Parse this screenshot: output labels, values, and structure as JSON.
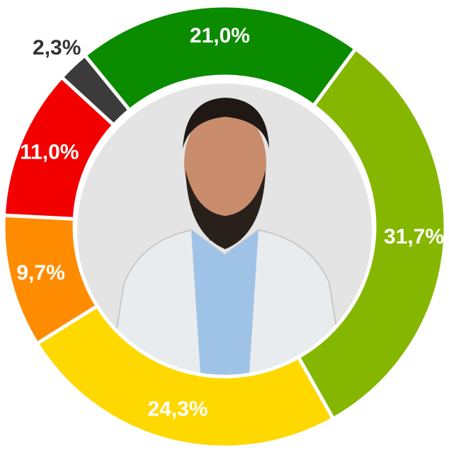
{
  "chart_data": {
    "type": "donut",
    "values": [
      21.0,
      31.7,
      24.3,
      9.7,
      11.0,
      2.3
    ],
    "value_labels": [
      "21,0%",
      "31,7%",
      "24,3%",
      "9,7%",
      "11,0%",
      "2,3%"
    ],
    "colors": [
      "#0b8c00",
      "#86b700",
      "#ffd800",
      "#ff8c00",
      "#f20000",
      "#3b3b3b"
    ]
  }
}
